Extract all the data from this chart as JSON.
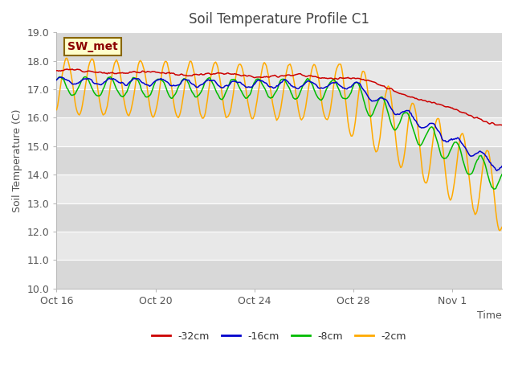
{
  "title": "Soil Temperature Profile C1",
  "xlabel": "Time",
  "ylabel": "Soil Temperature (C)",
  "ylim": [
    10.0,
    19.0
  ],
  "yticks": [
    10.0,
    11.0,
    12.0,
    13.0,
    14.0,
    15.0,
    16.0,
    17.0,
    18.0,
    19.0
  ],
  "colors": {
    "-32cm": "#cc0000",
    "-16cm": "#0000cc",
    "-8cm": "#00bb00",
    "-2cm": "#ffaa00"
  },
  "legend_labels": [
    "-32cm",
    "-16cm",
    "-8cm",
    "-2cm"
  ],
  "annotation_text": "SW_met",
  "annotation_bg": "#ffffcc",
  "annotation_border": "#886600",
  "bg_dark": "#d8d8d8",
  "bg_light": "#e8e8e8",
  "grid_line_color": "#ffffff",
  "title_color": "#444444",
  "xtick_labels": [
    "Oct 16",
    "Oct 20",
    "Oct 24",
    "Oct 28",
    "Nov 1"
  ],
  "xtick_day_offsets": [
    0,
    4,
    8,
    12,
    16
  ]
}
